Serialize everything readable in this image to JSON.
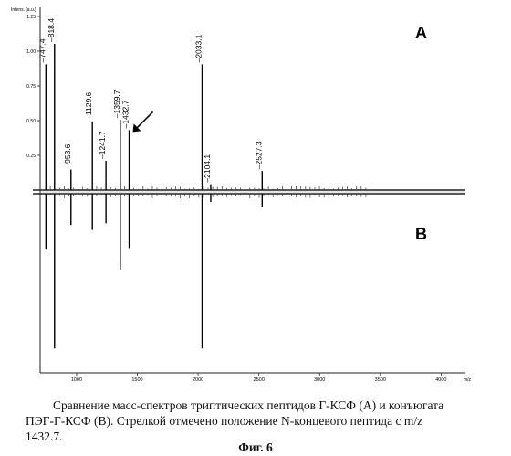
{
  "chart_data": {
    "type": "stem",
    "panels": [
      {
        "label": "A",
        "peaks": [
          {
            "mz": 747.4,
            "rel": 0.86,
            "label": "747.4"
          },
          {
            "mz": 818.4,
            "rel": 1.0,
            "label": "818.4"
          },
          {
            "mz": 953.6,
            "rel": 0.14,
            "label": "953.6"
          },
          {
            "mz": 1129.6,
            "rel": 0.47,
            "label": "1129.6"
          },
          {
            "mz": 1241.7,
            "rel": 0.2,
            "label": "1241.7"
          },
          {
            "mz": 1359.7,
            "rel": 0.48,
            "label": "1359.7"
          },
          {
            "mz": 1432.7,
            "rel": 0.41,
            "label": "1432.7"
          },
          {
            "mz": 2033.1,
            "rel": 0.86,
            "label": "2033.1"
          },
          {
            "mz": 2104.1,
            "rel": 0.04,
            "label": "2104.1"
          },
          {
            "mz": 2527.3,
            "rel": 0.13,
            "label": "2527.3"
          }
        ],
        "arrow_target": 1432.7
      },
      {
        "label": "B",
        "peaks": [
          {
            "mz": 747.4,
            "rel": 0.34
          },
          {
            "mz": 818.4,
            "rel": 0.94
          },
          {
            "mz": 953.6,
            "rel": 0.19
          },
          {
            "mz": 1129.6,
            "rel": 0.22
          },
          {
            "mz": 1241.7,
            "rel": 0.18
          },
          {
            "mz": 1359.7,
            "rel": 0.46
          },
          {
            "mz": 1432.7,
            "rel": 0.33
          },
          {
            "mz": 2033.1,
            "rel": 0.94
          },
          {
            "mz": 2104.1,
            "rel": 0.05
          },
          {
            "mz": 2527.3,
            "rel": 0.08
          }
        ]
      }
    ],
    "xrange": [
      700,
      4200
    ],
    "xticks": [
      "1000",
      "1500",
      "2000",
      "2500",
      "3000",
      "3500",
      "4000"
    ],
    "xtick_values": [
      1000,
      1500,
      2000,
      2500,
      3000,
      3500,
      4000
    ],
    "xlabel": "m/z",
    "ytick_labels_a": [
      "1.25",
      "1.00",
      "0.75",
      "0.50",
      "0.25"
    ],
    "ytick_values_a": [
      1.25,
      1.0,
      0.75,
      0.5,
      0.25
    ],
    "ylabel": "Intens. [a.u.]"
  },
  "caption": {
    "line1": "Сравнение масс-спектров триптических пептидов Г-КСФ (А) и конъюгата",
    "line2": "ПЭГ-Г-КСФ (В). Стрелкой отмечено положение N-концевого пептида с m/z",
    "line3": "1432.7.",
    "figure": "Фиг. 6"
  }
}
